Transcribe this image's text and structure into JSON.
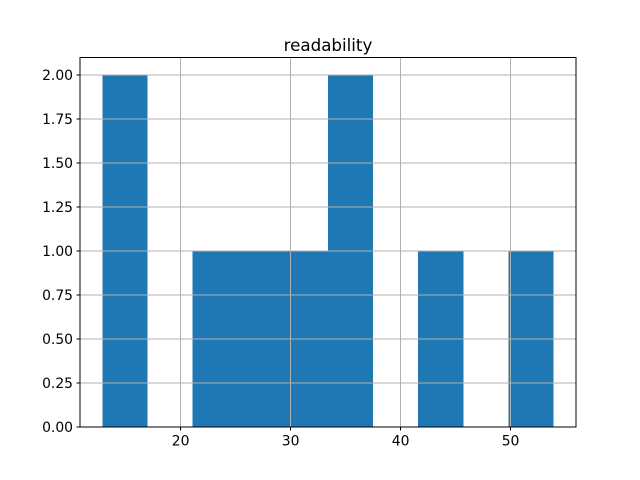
{
  "chart_data": {
    "type": "histogram",
    "title": "readability",
    "xlabel": "",
    "ylabel": "",
    "bin_edges": [
      12.9,
      17.0,
      21.1,
      25.2,
      29.3,
      33.4,
      37.5,
      41.6,
      45.7,
      49.8,
      53.9
    ],
    "counts": [
      2,
      0,
      1,
      1,
      1,
      2,
      0,
      1,
      0,
      1
    ],
    "xlim": [
      10.85,
      55.95
    ],
    "ylim": [
      0,
      2.1
    ],
    "xticks": [
      20,
      30,
      40,
      50
    ],
    "xtick_labels": [
      "20",
      "30",
      "40",
      "50"
    ],
    "yticks": [
      0,
      0.25,
      0.5,
      0.75,
      1.0,
      1.25,
      1.5,
      1.75,
      2.0
    ],
    "ytick_labels": [
      "0.00",
      "0.25",
      "0.50",
      "0.75",
      "1.00",
      "1.25",
      "1.50",
      "1.75",
      "2.00"
    ],
    "grid": true,
    "grid_above_bars": true,
    "legend": false,
    "colors": {
      "bar": "#1f77b4",
      "grid": "#b0b0b0",
      "spine": "#000000",
      "tick": "#000000",
      "text": "#000000",
      "background": "#ffffff"
    }
  }
}
